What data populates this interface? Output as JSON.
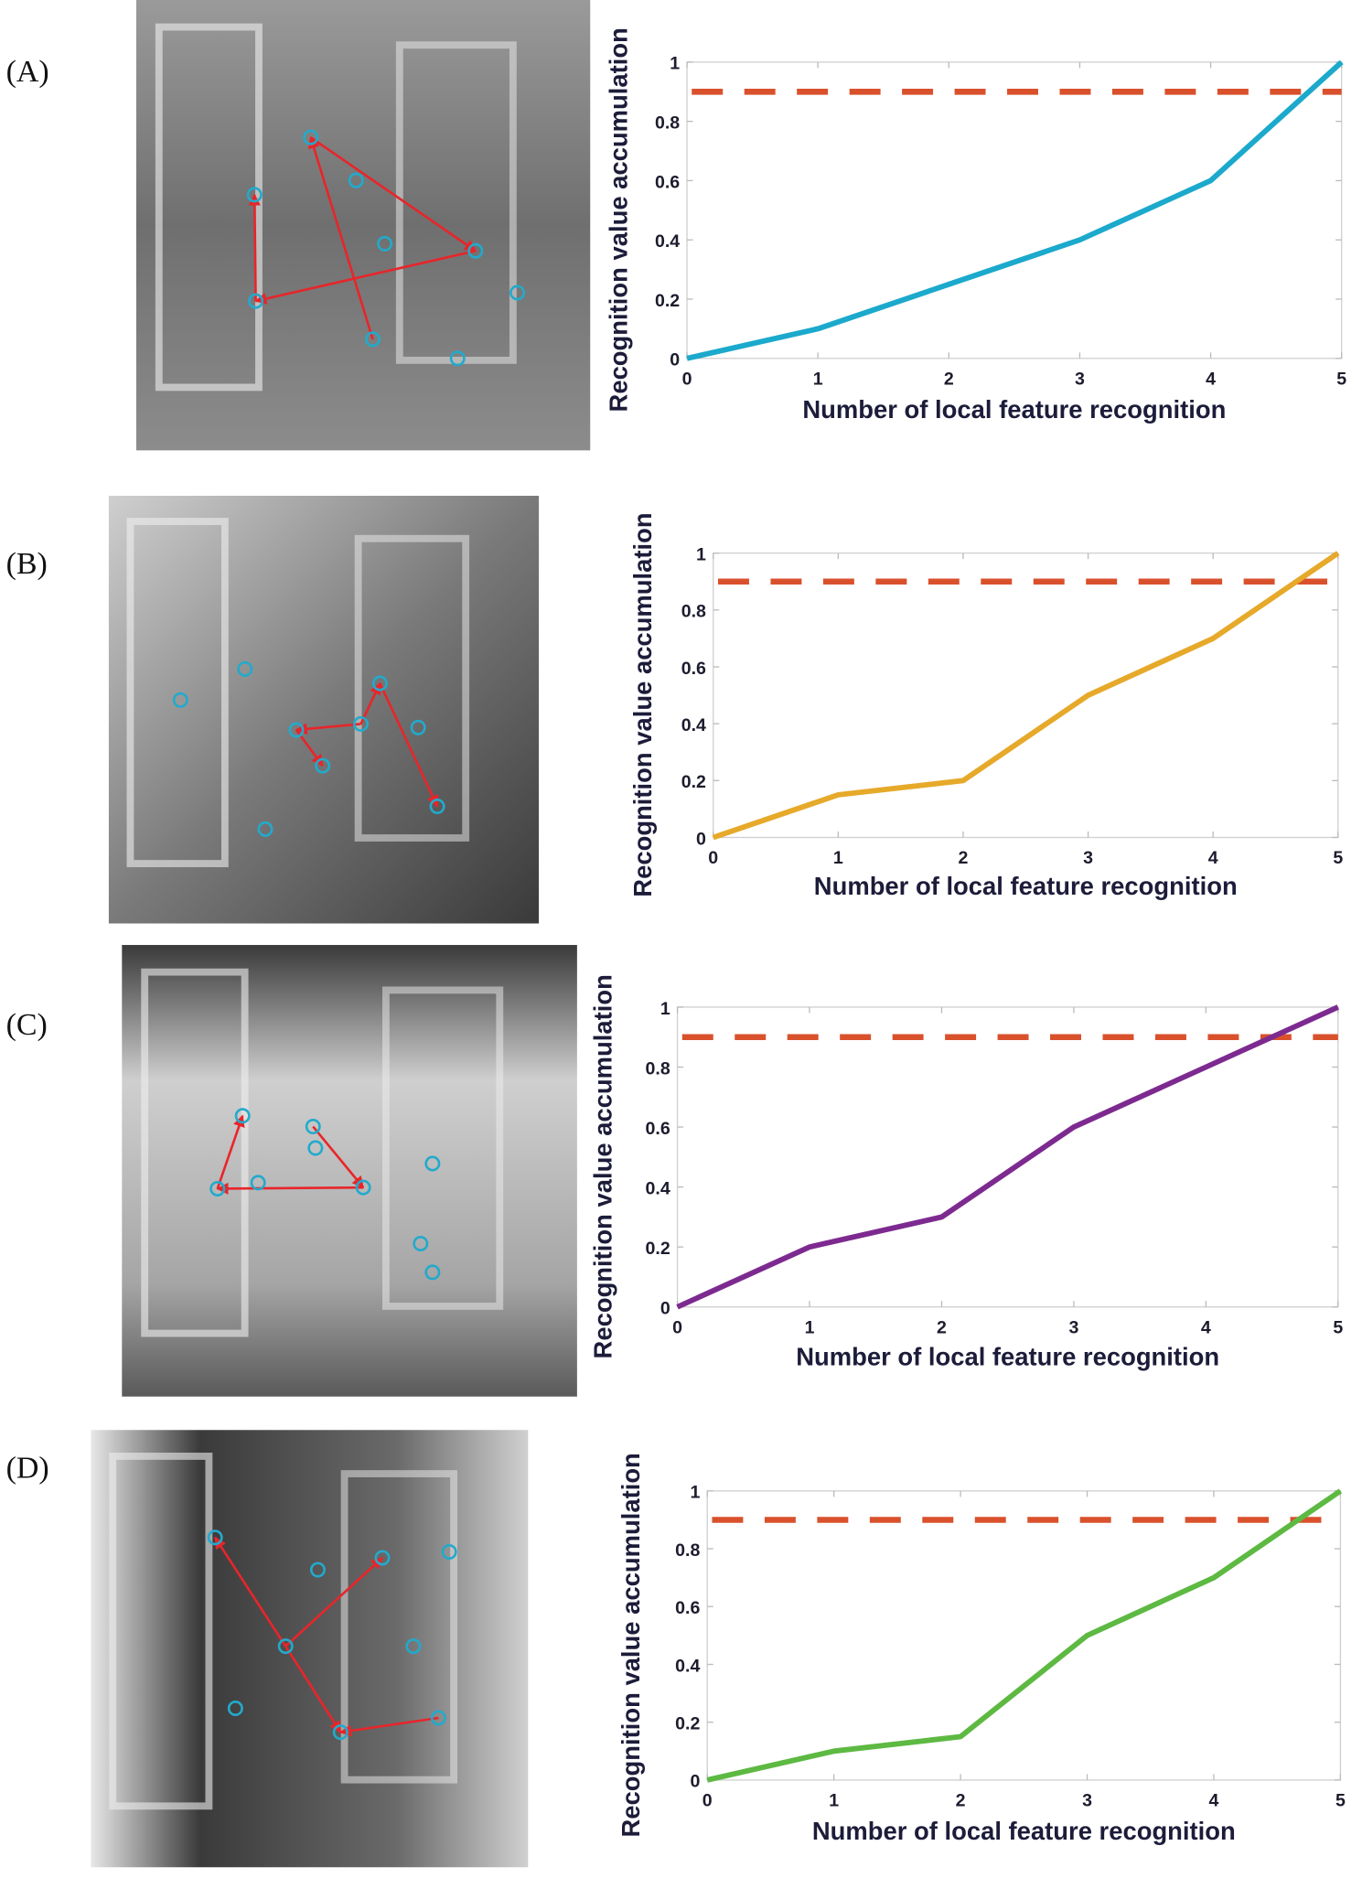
{
  "panels": [
    {
      "label": "(A)"
    },
    {
      "label": "(B)"
    },
    {
      "label": "(C)"
    },
    {
      "label": "(D)"
    }
  ],
  "colors": {
    "threshold": "#D9512C",
    "fixation_circle": "#22AACC",
    "scanpath_arrow": "#E8252A"
  },
  "chart_data": [
    {
      "type": "line",
      "x": [
        0,
        1,
        2,
        3,
        4,
        5
      ],
      "y": [
        0,
        0.1,
        0.25,
        0.4,
        0.6,
        1.0
      ],
      "color": "#1BA9CC",
      "threshold": 0.9,
      "xlim": [
        0,
        5
      ],
      "ylim": [
        0,
        1
      ],
      "xticks": [
        "0",
        "1",
        "2",
        "3",
        "4",
        "5"
      ],
      "yticks": [
        "0",
        "0.2",
        "0.4",
        "0.6",
        "0.8",
        "1"
      ],
      "xlabel": "Number of local feature recognition",
      "ylabel": "Recognition value accumulation",
      "grid": false
    },
    {
      "type": "line",
      "x": [
        0,
        1,
        2,
        3,
        4,
        5
      ],
      "y": [
        0,
        0.15,
        0.2,
        0.5,
        0.7,
        1.0
      ],
      "color": "#E6A92A",
      "threshold": 0.9,
      "xlim": [
        0,
        5
      ],
      "ylim": [
        0,
        1
      ],
      "xticks": [
        "0",
        "1",
        "2",
        "3",
        "4",
        "5"
      ],
      "yticks": [
        "0",
        "0.2",
        "0.4",
        "0.6",
        "0.8",
        "1"
      ],
      "xlabel": "Number of local feature recognition",
      "ylabel": "Recognition value accumulation",
      "grid": false
    },
    {
      "type": "line",
      "x": [
        0,
        1,
        2,
        3,
        4,
        5
      ],
      "y": [
        0,
        0.2,
        0.3,
        0.6,
        0.8,
        1.0
      ],
      "color": "#7D2A90",
      "threshold": 0.9,
      "xlim": [
        0,
        5
      ],
      "ylim": [
        0,
        1
      ],
      "xticks": [
        "0",
        "1",
        "2",
        "3",
        "4",
        "5"
      ],
      "yticks": [
        "0",
        "0.2",
        "0.4",
        "0.6",
        "0.8",
        "1"
      ],
      "xlabel": "Number of local feature recognition",
      "ylabel": "Recognition value accumulation",
      "grid": false
    },
    {
      "type": "line",
      "x": [
        0,
        1,
        2,
        3,
        4,
        5
      ],
      "y": [
        0,
        0.1,
        0.15,
        0.5,
        0.7,
        1.0
      ],
      "color": "#5DB942",
      "threshold": 0.9,
      "xlim": [
        0,
        5
      ],
      "ylim": [
        0,
        1
      ],
      "xticks": [
        "0",
        "1",
        "2",
        "3",
        "4",
        "5"
      ],
      "yticks": [
        "0",
        "0.2",
        "0.4",
        "0.6",
        "0.8",
        "1"
      ],
      "xlabel": "Number of local feature recognition",
      "ylabel": "Recognition value accumulation",
      "grid": false
    }
  ]
}
